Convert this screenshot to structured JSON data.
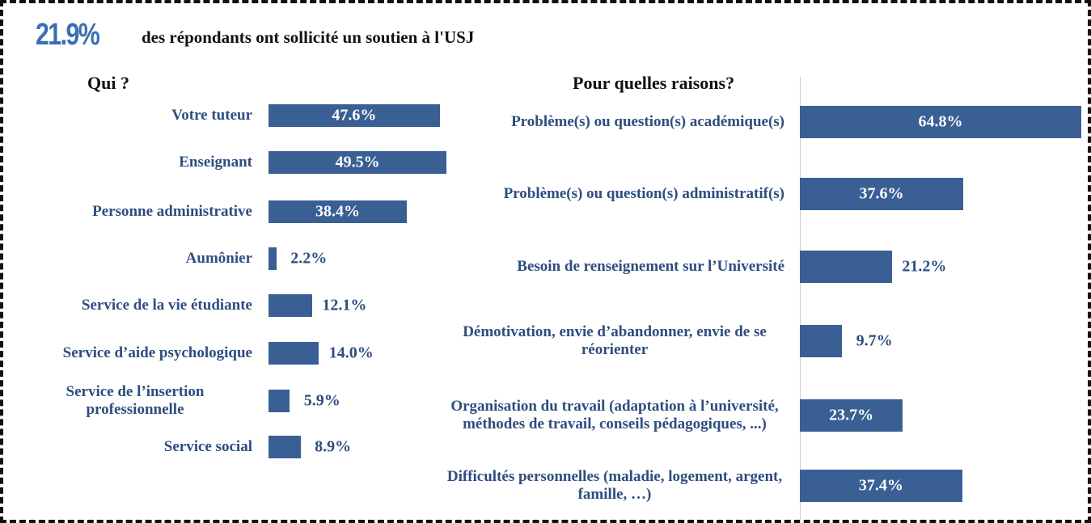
{
  "header": {
    "highlight": "21.9%",
    "text": "des répondants ont sollicité un soutien à l'USJ"
  },
  "chart_data": [
    {
      "type": "bar",
      "orientation": "horizontal",
      "title": "Qui ?",
      "color": "#3a5f94",
      "categories": [
        "Votre tuteur",
        "Enseignant",
        "Personne administrative",
        "Aumônier",
        "Service de la vie étudiante",
        "Service d’aide psychologique",
        "Service de l’insertion professionnelle",
        "Service social"
      ],
      "values": [
        47.6,
        49.5,
        38.4,
        2.2,
        12.1,
        14.0,
        5.9,
        8.9
      ],
      "value_labels": [
        "47.6%",
        "49.5%",
        "38.4%",
        "2.2%",
        "12.1%",
        "14.0%",
        "5.9%",
        "8.9%"
      ]
    },
    {
      "type": "bar",
      "orientation": "horizontal",
      "title": "Pour quelles raisons?",
      "color": "#3a5f94",
      "categories": [
        "Problème(s) ou question(s) académique(s)",
        "Problème(s) ou question(s) administratif(s)",
        "Besoin de renseignement sur l’Université",
        "Démotivation, envie d’abandonner, envie de se réorienter",
        "Organisation du travail (adaptation à l’université, méthodes de travail, conseils pédagogiques, ...)",
        "Difficultés personnelles (maladie, logement, argent, famille, …)"
      ],
      "values": [
        64.8,
        37.6,
        21.2,
        9.7,
        23.7,
        37.4
      ],
      "value_labels": [
        "64.8%",
        "37.6%",
        "21.2%",
        "9.7%",
        "23.7%",
        "37.4%"
      ]
    }
  ]
}
